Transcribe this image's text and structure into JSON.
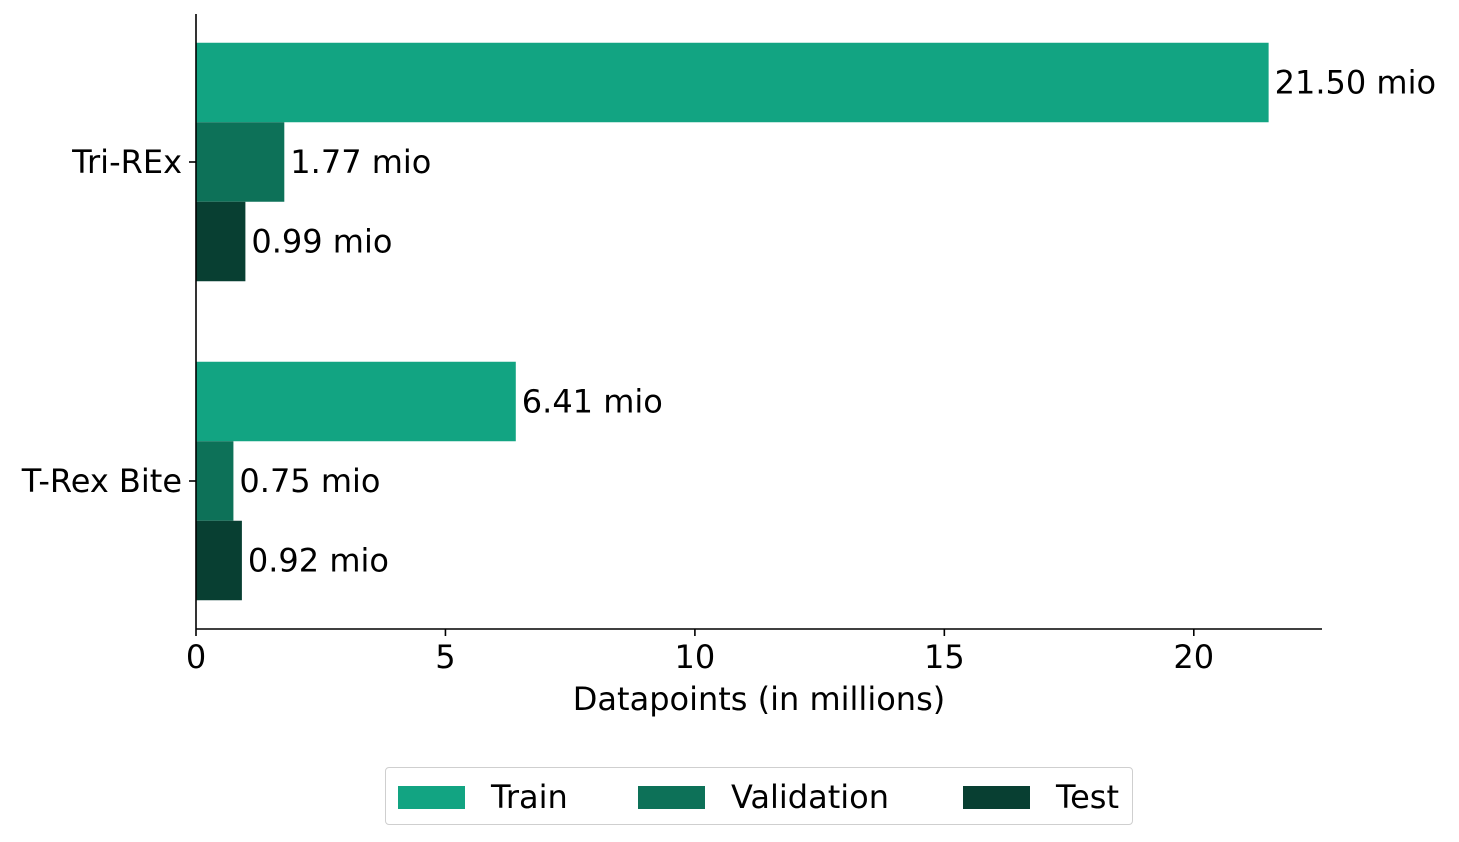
{
  "chart_data": {
    "type": "bar",
    "orientation": "horizontal",
    "categories": [
      "Tri-REx",
      "T-Rex Bite"
    ],
    "series": [
      {
        "name": "Train",
        "values": [
          21.5,
          6.41
        ],
        "labels": [
          "21.50 mio",
          "6.41 mio"
        ],
        "color": "#12a482"
      },
      {
        "name": "Validation",
        "values": [
          1.77,
          0.75
        ],
        "labels": [
          "1.77 mio",
          "0.75 mio"
        ],
        "color": "#0d7158"
      },
      {
        "name": "Test",
        "values": [
          0.99,
          0.92
        ],
        "labels": [
          "0.99 mio",
          "0.92 mio"
        ],
        "color": "#083f32"
      }
    ],
    "xlabel": "Datapoints (in millions)",
    "ylabel": "",
    "xlim": [
      0,
      22.57
    ],
    "xticks": [
      0,
      5,
      10,
      15,
      20
    ],
    "xtick_labels": [
      "0",
      "5",
      "10",
      "15",
      "20"
    ],
    "grid": false,
    "legend_placement": "bottom-center"
  }
}
